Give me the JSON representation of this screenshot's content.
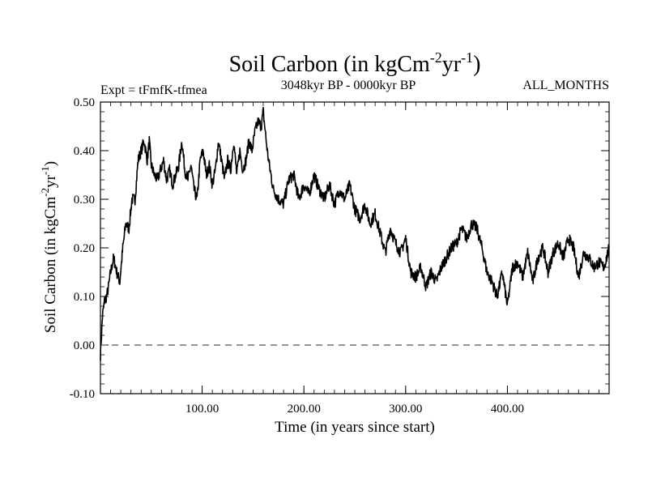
{
  "chart_data": {
    "type": "line",
    "title": {
      "base": "Soil Carbon (in kgCm",
      "sup1": "-2",
      "mid": "yr",
      "sup2": "-1",
      "end": ")"
    },
    "ylabel": {
      "base": "Soil Carbon (in kgCm",
      "sup1": "-2",
      "mid": "yr",
      "sup2": "-1",
      "end": ")"
    },
    "subtitle_left": "Expt = tFmfK-tfmea",
    "subtitle_center": "3048kyr BP - 0000kyr BP",
    "subtitle_right": "ALL_MONTHS",
    "xlabel": "Time (in years since start)",
    "xlim": [
      0,
      500
    ],
    "ylim": [
      -0.1,
      0.5
    ],
    "xticks": [
      100,
      200,
      300,
      400
    ],
    "xtick_labels": [
      "100.00",
      "200.00",
      "300.00",
      "400.00"
    ],
    "yticks": [
      -0.1,
      0.0,
      0.1,
      0.2,
      0.3,
      0.4,
      0.5
    ],
    "ytick_labels": [
      "-0.10",
      "0.00",
      "0.10",
      "0.20",
      "0.30",
      "0.40",
      "0.50"
    ],
    "reference_line": {
      "y": 0.0,
      "style": "dashed"
    },
    "series": [
      {
        "name": "soil carbon",
        "color": "#000000",
        "x": [
          0,
          2,
          4,
          6,
          8,
          10,
          13,
          16,
          19,
          22,
          25,
          28,
          31,
          34,
          37,
          40,
          43,
          46,
          48,
          50,
          53,
          56,
          59,
          62,
          65,
          68,
          71,
          74,
          77,
          80,
          83,
          86,
          89,
          92,
          95,
          98,
          101,
          104,
          107,
          110,
          113,
          116,
          119,
          122,
          125,
          128,
          131,
          134,
          137,
          140,
          143,
          146,
          149,
          152,
          155,
          158,
          160,
          162,
          164,
          166,
          170,
          175,
          180,
          185,
          190,
          195,
          200,
          205,
          210,
          215,
          220,
          225,
          230,
          235,
          240,
          245,
          250,
          255,
          260,
          265,
          270,
          275,
          280,
          285,
          290,
          295,
          300,
          305,
          310,
          315,
          320,
          325,
          330,
          335,
          340,
          345,
          350,
          355,
          360,
          365,
          370,
          375,
          380,
          385,
          390,
          395,
          400,
          405,
          410,
          415,
          420,
          425,
          430,
          435,
          440,
          445,
          450,
          455,
          460,
          465,
          470,
          475,
          480,
          485,
          490,
          495,
          500
        ],
        "y": [
          -0.02,
          0.06,
          0.09,
          0.1,
          0.12,
          0.15,
          0.18,
          0.15,
          0.13,
          0.2,
          0.25,
          0.24,
          0.3,
          0.3,
          0.38,
          0.4,
          0.42,
          0.38,
          0.42,
          0.37,
          0.35,
          0.34,
          0.36,
          0.38,
          0.34,
          0.36,
          0.33,
          0.35,
          0.37,
          0.42,
          0.36,
          0.34,
          0.37,
          0.32,
          0.3,
          0.38,
          0.4,
          0.35,
          0.37,
          0.33,
          0.36,
          0.42,
          0.38,
          0.34,
          0.38,
          0.36,
          0.42,
          0.35,
          0.4,
          0.36,
          0.38,
          0.42,
          0.4,
          0.44,
          0.46,
          0.45,
          0.48,
          0.44,
          0.4,
          0.37,
          0.32,
          0.3,
          0.29,
          0.34,
          0.35,
          0.3,
          0.33,
          0.31,
          0.35,
          0.32,
          0.3,
          0.33,
          0.29,
          0.32,
          0.3,
          0.33,
          0.28,
          0.26,
          0.29,
          0.25,
          0.27,
          0.23,
          0.19,
          0.24,
          0.21,
          0.19,
          0.22,
          0.15,
          0.14,
          0.16,
          0.12,
          0.15,
          0.13,
          0.16,
          0.18,
          0.2,
          0.21,
          0.24,
          0.22,
          0.25,
          0.24,
          0.2,
          0.15,
          0.13,
          0.1,
          0.15,
          0.08,
          0.16,
          0.17,
          0.14,
          0.19,
          0.13,
          0.18,
          0.2,
          0.15,
          0.19,
          0.21,
          0.18,
          0.22,
          0.2,
          0.14,
          0.19,
          0.18,
          0.16,
          0.17,
          0.16,
          0.2
        ]
      }
    ]
  }
}
